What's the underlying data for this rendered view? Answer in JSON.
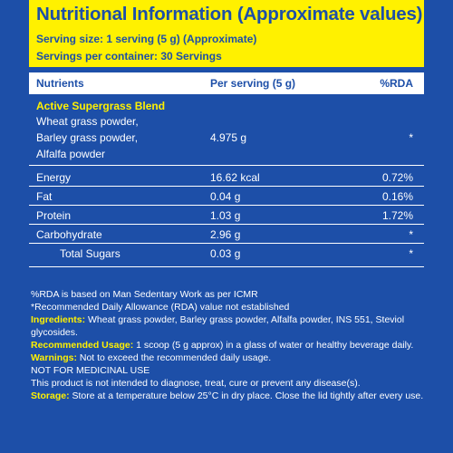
{
  "header": {
    "title": "Nutritional Information (Approximate values)",
    "serving_size": "Serving size: 1 serving (5 g) (Approximate)",
    "servings_per_container": "Servings per container: 30 Servings"
  },
  "columns": {
    "nutrients": "Nutrients",
    "per_serving": "Per serving (5 g)",
    "rda": "%RDA"
  },
  "blend": {
    "title": "Active Supergrass Blend",
    "lines": [
      "Wheat grass powder,",
      "Barley grass powder,",
      "Alfalfa powder"
    ],
    "value": "4.975 g",
    "rda": "*"
  },
  "rows": [
    {
      "name": "Energy",
      "value": "16.62 kcal",
      "rda": "0.72%"
    },
    {
      "name": "Fat",
      "value": "0.04 g",
      "rda": "0.16%"
    },
    {
      "name": "Protein",
      "value": "1.03 g",
      "rda": "1.72%"
    },
    {
      "name": "Carbohydrate",
      "value": "2.96 g",
      "rda": "*"
    },
    {
      "name": "Total Sugars",
      "value": "0.03 g",
      "rda": "*"
    }
  ],
  "notes": {
    "rda_basis": "%RDA is based on Man Sedentary Work as per ICMR",
    "rda_note": "*Recommended Daily Allowance (RDA) value not established",
    "ingredients_label": "Ingredients:",
    "ingredients": "Wheat grass powder, Barley grass powder, Alfalfa powder, INS 551, Steviol glycosides.",
    "usage_label": "Recommended Usage:",
    "usage": "1 scoop (5 g approx) in a glass of water or healthy beverage daily.",
    "warnings_label": "Warnings:",
    "warnings": "Not to exceed the recommended daily usage.",
    "not_medicinal": "NOT FOR MEDICINAL USE",
    "disclaimer": "This product is not intended to diagnose, treat, cure or prevent any disease(s).",
    "storage_label": "Storage:",
    "storage": "Store at a temperature below 25°C in dry place. Close the lid tightly after every use."
  }
}
